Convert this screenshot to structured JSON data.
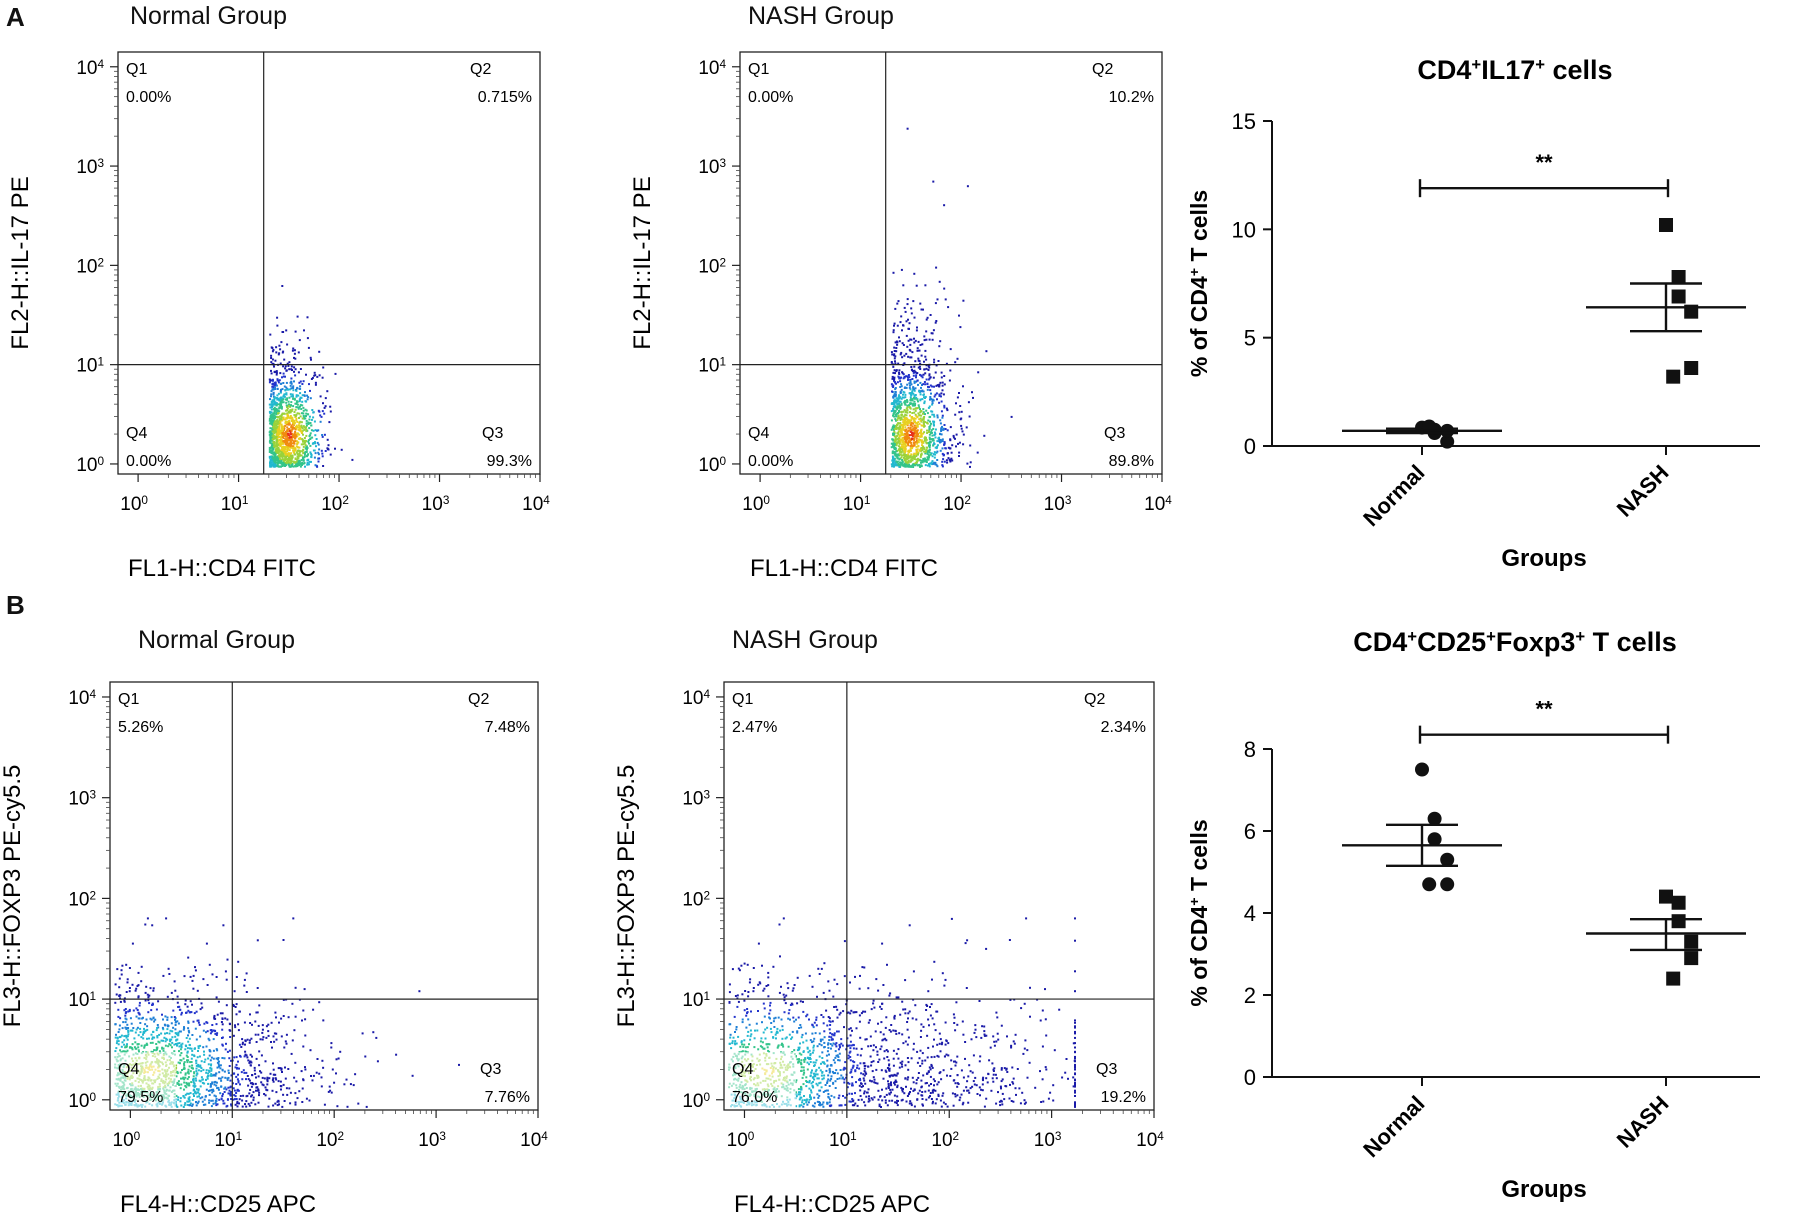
{
  "panels": [
    {
      "letter": "A",
      "flow_plots": [
        {
          "title": "Normal Group",
          "ylabel": "FL2-H::IL-17 PE",
          "xlabel": "FL1-H::CD4 FITC",
          "quadrants": {
            "q1": {
              "label": "Q1",
              "value": "0.00%"
            },
            "q2": {
              "label": "Q2",
              "value": "0.715%"
            },
            "q3": {
              "label": "Q3",
              "value": "99.3%"
            },
            "q4": {
              "label": "Q4",
              "value": "0.00%"
            }
          },
          "gate_x_decade": 1.25,
          "gate_y_decade": 1.0
        },
        {
          "title": "NASH Group",
          "ylabel": "FL2-H::IL-17 PE",
          "xlabel": "FL1-H::CD4 FITC",
          "quadrants": {
            "q1": {
              "label": "Q1",
              "value": "0.00%"
            },
            "q2": {
              "label": "Q2",
              "value": "10.2%"
            },
            "q3": {
              "label": "Q3",
              "value": "89.8%"
            },
            "q4": {
              "label": "Q4",
              "value": "0.00%"
            }
          },
          "gate_x_decade": 1.25,
          "gate_y_decade": 1.0
        }
      ],
      "scatter_chart": {
        "type": "scatter",
        "title_base": "CD4",
        "title_sup1": "+",
        "title_mid": "IL17",
        "title_sup2": "+",
        "title_tail": " cells",
        "ylabel_base": "% of CD4",
        "ylabel_sup": "+",
        "ylabel_tail": " T cells",
        "xlabel": "Groups",
        "categories": [
          "Normal",
          "NASH"
        ],
        "ylim": [
          0,
          15
        ],
        "yticks": [
          "0",
          "5",
          "10",
          "15"
        ],
        "series": [
          {
            "name": "Normal",
            "marker": "circle",
            "values": [
              0.85,
              0.75,
              0.6,
              0.2,
              0.7,
              0.9
            ],
            "mean": 0.7,
            "sem_low": 0.6,
            "sem_high": 0.8
          },
          {
            "name": "NASH",
            "marker": "square",
            "values": [
              10.2,
              7.8,
              6.9,
              6.2,
              3.6,
              3.2
            ],
            "mean": 6.4,
            "sem_low": 5.3,
            "sem_high": 7.5
          }
        ],
        "significance": {
          "label": "**",
          "y": 11.9
        }
      }
    },
    {
      "letter": "B",
      "flow_plots": [
        {
          "title": "Normal Group",
          "ylabel": "FL3-H::FOXP3 PE-cy5.5",
          "xlabel": "FL4-H::CD25 APC",
          "quadrants": {
            "q1": {
              "label": "Q1",
              "value": "5.26%"
            },
            "q2": {
              "label": "Q2",
              "value": "7.48%"
            },
            "q3": {
              "label": "Q3",
              "value": "7.76%"
            },
            "q4": {
              "label": "Q4",
              "value": "79.5%"
            }
          },
          "gate_x_decade": 1.0,
          "gate_y_decade": 1.0
        },
        {
          "title": "NASH Group",
          "ylabel": "FL3-H::FOXP3 PE-cy5.5",
          "xlabel": "FL4-H::CD25 APC",
          "quadrants": {
            "q1": {
              "label": "Q1",
              "value": "2.47%"
            },
            "q2": {
              "label": "Q2",
              "value": "2.34%"
            },
            "q3": {
              "label": "Q3",
              "value": "19.2%"
            },
            "q4": {
              "label": "Q4",
              "value": "76.0%"
            }
          },
          "gate_x_decade": 1.0,
          "gate_y_decade": 1.0
        }
      ],
      "scatter_chart": {
        "type": "scatter",
        "title_base": "CD4",
        "title_sup1": "+",
        "title_mid": "CD25",
        "title_sup2": "+",
        "title_tail": "Foxp3",
        "title_sup3": "+",
        "title_tail2": " T cells",
        "ylabel_base": "% of CD4",
        "ylabel_sup": "+",
        "ylabel_tail": " T cells",
        "xlabel": "Groups",
        "categories": [
          "Normal",
          "NASH"
        ],
        "ylim": [
          0,
          8
        ],
        "yticks": [
          "0",
          "2",
          "4",
          "6",
          "8"
        ],
        "series": [
          {
            "name": "Normal",
            "marker": "circle",
            "values": [
              7.5,
              6.3,
              5.8,
              5.3,
              4.7,
              4.7
            ],
            "mean": 5.65,
            "sem_low": 5.15,
            "sem_high": 6.15
          },
          {
            "name": "NASH",
            "marker": "square",
            "values": [
              4.4,
              4.25,
              3.8,
              3.3,
              2.9,
              2.4
            ],
            "mean": 3.5,
            "sem_low": 3.1,
            "sem_high": 3.85
          }
        ],
        "significance": {
          "label": "**",
          "y": 8.35
        }
      }
    }
  ],
  "flow_axis_ticks": [
    "0",
    "1",
    "2",
    "3",
    "4"
  ],
  "flow_tick_base": "10"
}
